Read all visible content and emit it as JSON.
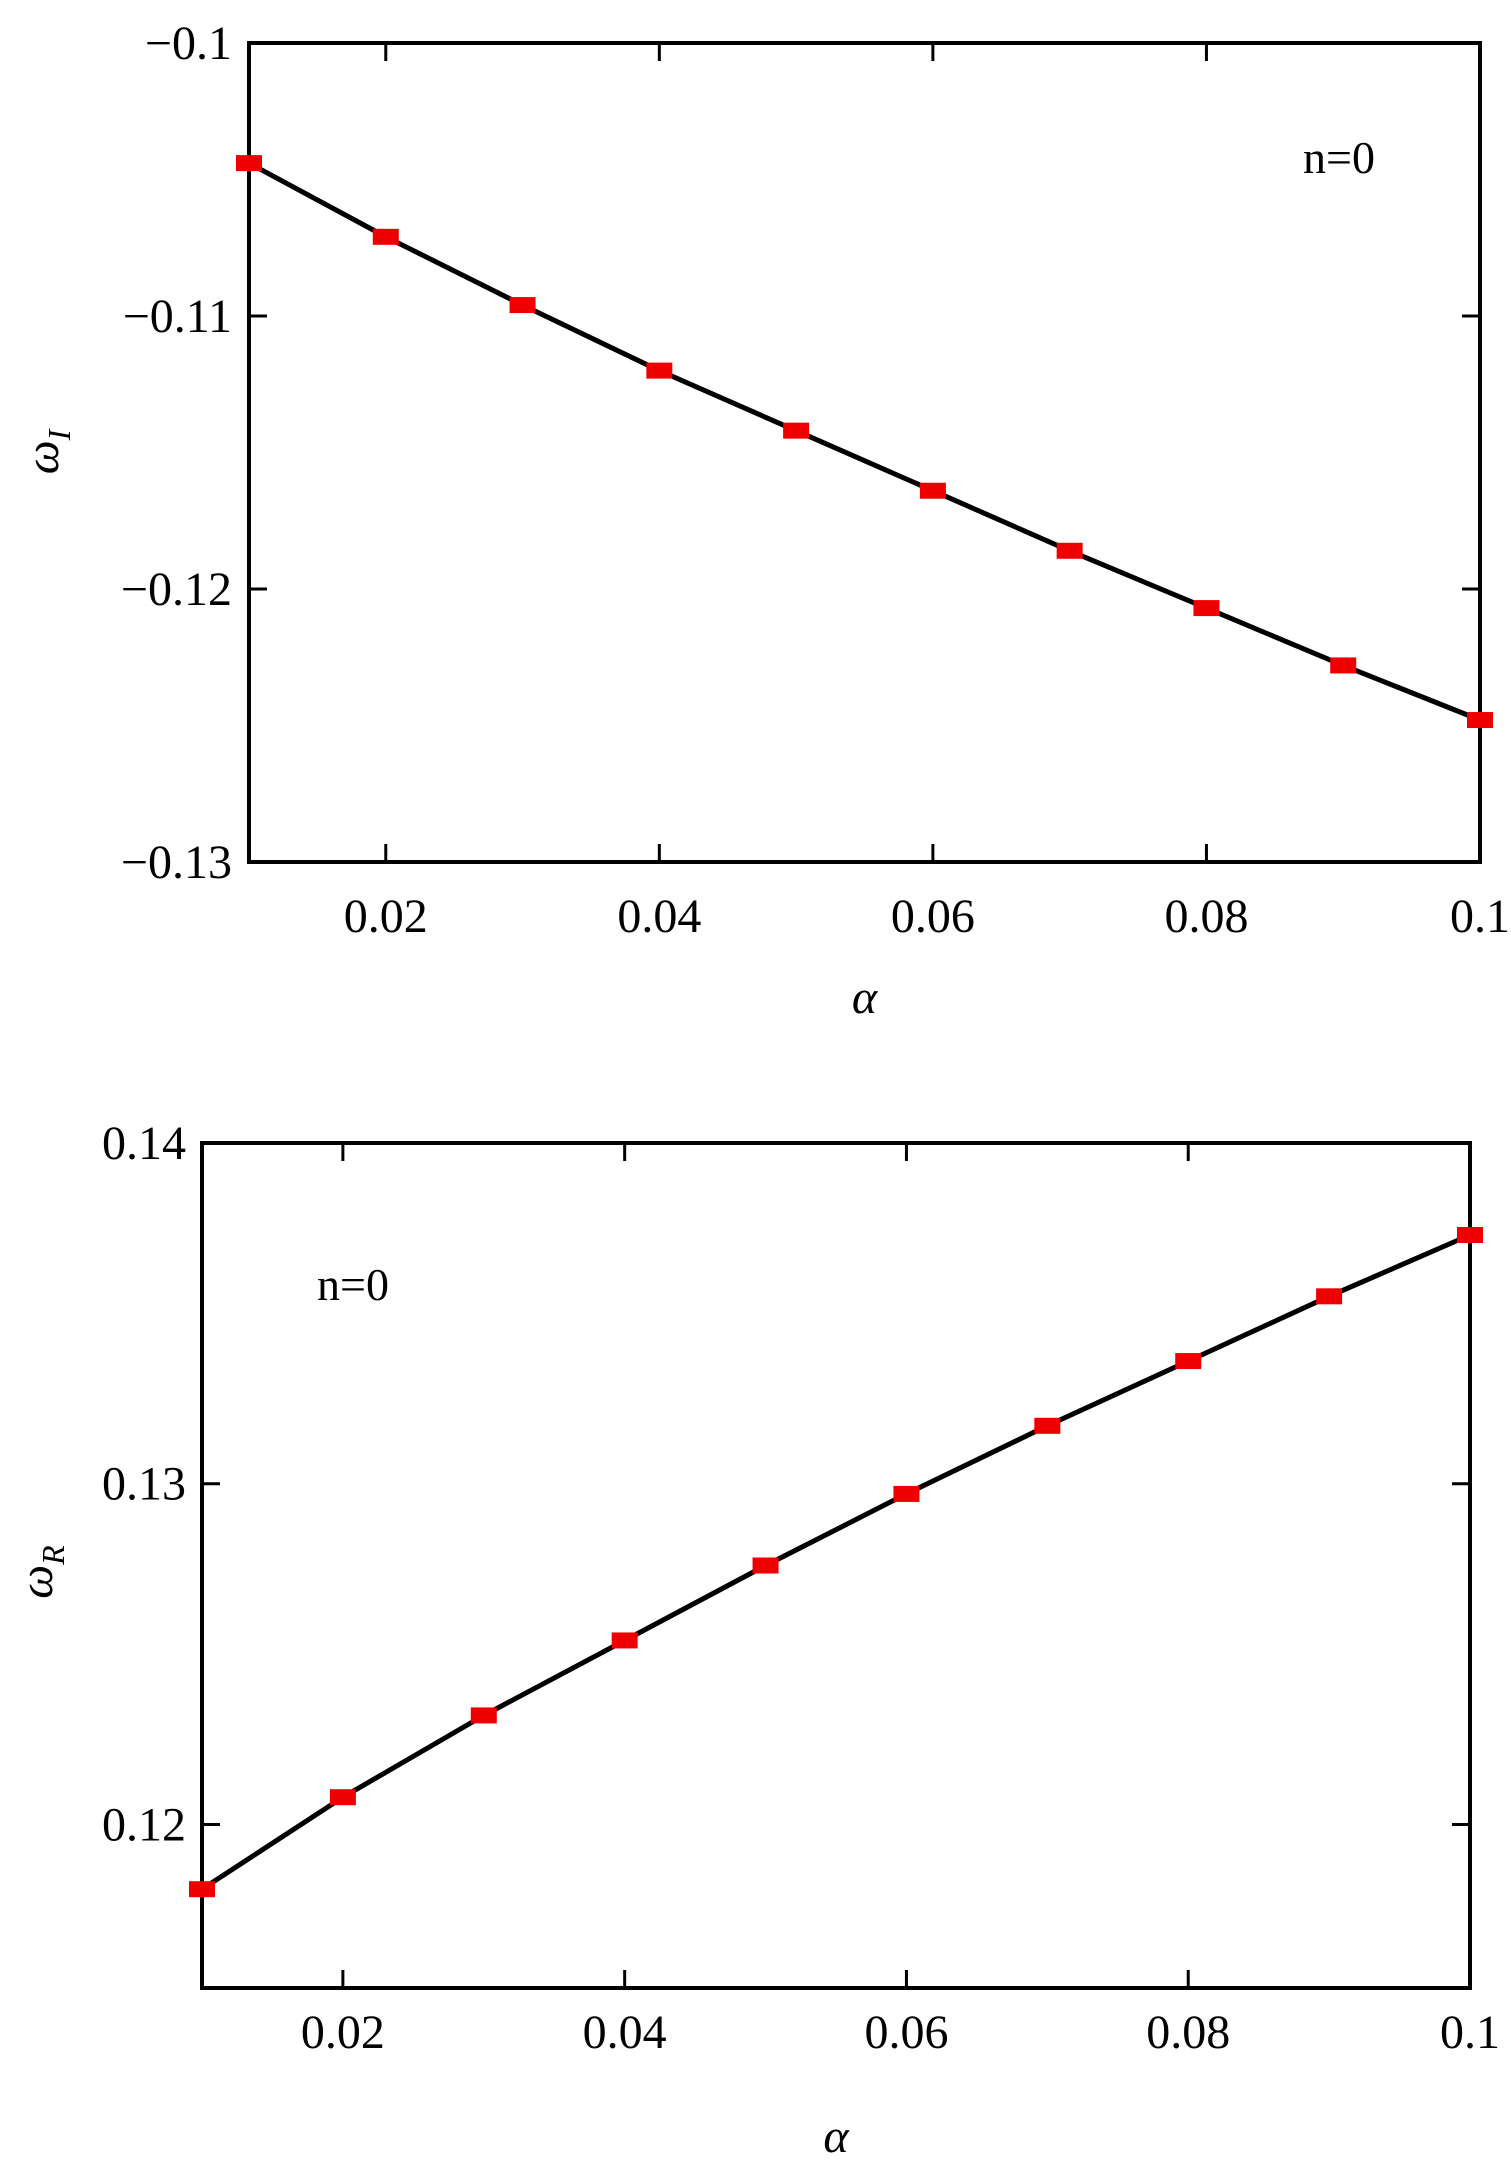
{
  "chart_data": [
    {
      "type": "line",
      "title": "",
      "xlabel": "α",
      "ylabel": {
        "base": "ω",
        "sub": "I"
      },
      "annotation": "n=0",
      "xlim": [
        0.01,
        0.1
      ],
      "ylim": [
        -0.13,
        -0.1
      ],
      "xticks": [
        0.02,
        0.04,
        0.06,
        0.08,
        0.1
      ],
      "xtick_labels": [
        "0.02",
        "0.04",
        "0.06",
        "0.08",
        "0.1"
      ],
      "yticks": [
        -0.1,
        -0.11,
        -0.12,
        -0.13
      ],
      "ytick_labels": [
        "−0.1",
        "−0.11",
        "−0.12",
        "−0.13"
      ],
      "grid": false,
      "line_color": "#000000",
      "marker_color": "#ee0000",
      "x": [
        0.01,
        0.02,
        0.03,
        0.04,
        0.05,
        0.06,
        0.07,
        0.08,
        0.09,
        0.1
      ],
      "y": [
        -0.1044,
        -0.1071,
        -0.1096,
        -0.112,
        -0.1142,
        -0.1164,
        -0.1186,
        -0.1207,
        -0.1228,
        -0.1248
      ]
    },
    {
      "type": "line",
      "title": "",
      "xlabel": "α",
      "ylabel": {
        "base": "ω",
        "sub": "R"
      },
      "annotation": "n=0",
      "xlim": [
        0.01,
        0.1
      ],
      "ylim": [
        0.1152,
        0.14
      ],
      "xticks": [
        0.02,
        0.04,
        0.06,
        0.08,
        0.1
      ],
      "xtick_labels": [
        "0.02",
        "0.04",
        "0.06",
        "0.08",
        "0.1"
      ],
      "yticks": [
        0.12,
        0.13,
        0.14
      ],
      "ytick_labels": [
        "0.12",
        "0.13",
        "0.14"
      ],
      "grid": false,
      "line_color": "#000000",
      "marker_color": "#ee0000",
      "x": [
        0.01,
        0.02,
        0.03,
        0.04,
        0.05,
        0.06,
        0.07,
        0.08,
        0.09,
        0.1
      ],
      "y": [
        0.1181,
        0.1208,
        0.1232,
        0.1254,
        0.1276,
        0.1297,
        0.1317,
        0.1336,
        0.1355,
        0.1373
      ]
    }
  ]
}
